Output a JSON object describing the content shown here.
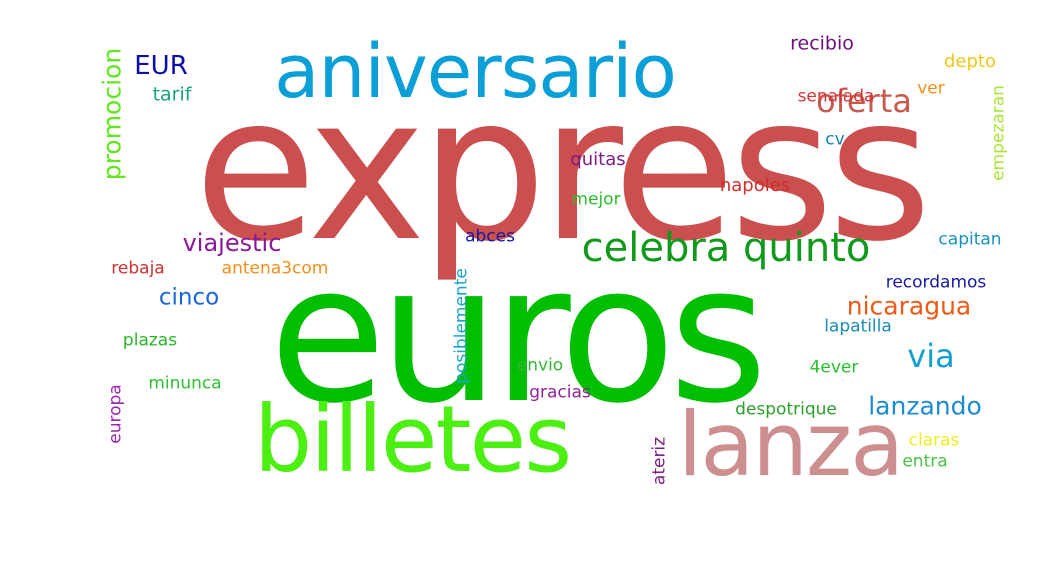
{
  "word_cloud": {
    "words": [
      {
        "id": "express",
        "text": "express",
        "color": "#cc4f4f"
      },
      {
        "id": "euros",
        "text": "euros",
        "color": "#00bf00"
      },
      {
        "id": "aniversario",
        "text": "aniversario",
        "color": "#0a9fd6"
      },
      {
        "id": "billetes",
        "text": "billetes",
        "color": "#4cef12"
      },
      {
        "id": "lanza",
        "text": "lanza",
        "color": "#cc8e8e"
      },
      {
        "id": "celebra-quinto",
        "text": "celebra quinto",
        "color": "#0f9a1b"
      },
      {
        "id": "oferta",
        "text": "oferta",
        "color": "#c65a4e"
      },
      {
        "id": "eur",
        "text": "EUR",
        "color": "#0b0ea7"
      },
      {
        "id": "viajestic",
        "text": "viajestic",
        "color": "#8b1899"
      },
      {
        "id": "promocion",
        "text": "promocion",
        "color": "#61e61f"
      },
      {
        "id": "tarif",
        "text": "tarif",
        "color": "#19a27f"
      },
      {
        "id": "nicaragua",
        "text": "nicaragua",
        "color": "#ec5a15"
      },
      {
        "id": "via",
        "text": "via",
        "color": "#139fd0"
      },
      {
        "id": "lanzando",
        "text": "lanzando",
        "color": "#1d8bd1"
      },
      {
        "id": "cinco",
        "text": "cinco",
        "color": "#1a66d8"
      },
      {
        "id": "recibio",
        "text": "recibio",
        "color": "#6b1279"
      },
      {
        "id": "depto",
        "text": "depto",
        "color": "#f0c719"
      },
      {
        "id": "ver",
        "text": "ver",
        "color": "#f08f19"
      },
      {
        "id": "senalada",
        "text": "senalada",
        "color": "#d43636"
      },
      {
        "id": "empezaran",
        "text": "empezaran",
        "color": "#a9e638"
      },
      {
        "id": "cv",
        "text": "cv",
        "color": "#1684b5"
      },
      {
        "id": "quitas",
        "text": "quitas",
        "color": "#7d1c86"
      },
      {
        "id": "napoles",
        "text": "napoles",
        "color": "#cf2d26"
      },
      {
        "id": "mejor",
        "text": "mejor",
        "color": "#2ebc2e"
      },
      {
        "id": "abces",
        "text": "abces",
        "color": "#14199f"
      },
      {
        "id": "capitan",
        "text": "capitan",
        "color": "#1592c2"
      },
      {
        "id": "rebaja",
        "text": "rebaja",
        "color": "#cc3333"
      },
      {
        "id": "antena3com",
        "text": "antena3com",
        "color": "#f08f19"
      },
      {
        "id": "posiblemente",
        "text": "posiblemente",
        "color": "#19a6c9"
      },
      {
        "id": "recordamos",
        "text": "recordamos",
        "color": "#17199e"
      },
      {
        "id": "lapatilla",
        "text": "lapatilla",
        "color": "#1a8bb5"
      },
      {
        "id": "plazas",
        "text": "plazas",
        "color": "#29b329"
      },
      {
        "id": "envio",
        "text": "envio",
        "color": "#33b833"
      },
      {
        "id": "4ever",
        "text": "4ever",
        "color": "#2bbd2b"
      },
      {
        "id": "minunca",
        "text": "minunca",
        "color": "#2fc02f"
      },
      {
        "id": "europa",
        "text": "europa",
        "color": "#9c27b0"
      },
      {
        "id": "gracias",
        "text": "gracias",
        "color": "#8e2396"
      },
      {
        "id": "despotrique",
        "text": "despotrique",
        "color": "#2ca02c"
      },
      {
        "id": "ateriz",
        "text": "ateriz",
        "color": "#7d1c86"
      },
      {
        "id": "claras",
        "text": "claras",
        "color": "#eded21"
      },
      {
        "id": "entra",
        "text": "entra",
        "color": "#49c249"
      }
    ]
  }
}
